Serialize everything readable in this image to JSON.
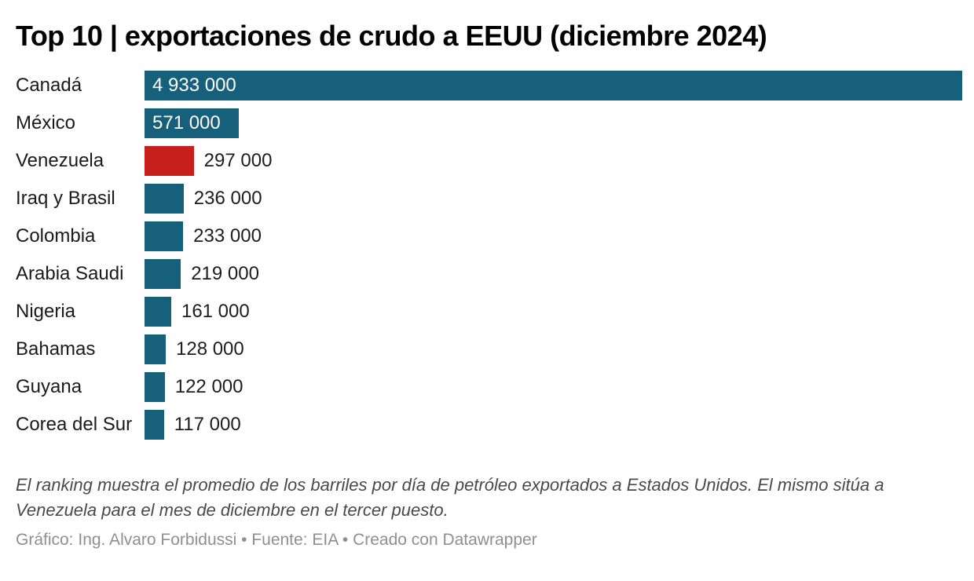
{
  "header": {
    "title": "Top 10 | exportaciones de crudo a EEUU (diciembre 2024)"
  },
  "chart_data": {
    "type": "bar",
    "orientation": "horizontal",
    "title": "Top 10 | exportaciones de crudo a EEUU (diciembre 2024)",
    "categories": [
      "Canadá",
      "México",
      "Venezuela",
      "Iraq y Brasil",
      "Colombia",
      "Arabia Saudi",
      "Nigeria",
      "Bahamas",
      "Guyana",
      "Corea del Sur"
    ],
    "values": [
      4933000,
      571000,
      297000,
      236000,
      233000,
      219000,
      161000,
      128000,
      122000,
      117000
    ],
    "value_labels": [
      "4 933 000",
      "571 000",
      "297 000",
      "236 000",
      "233 000",
      "219 000",
      "161 000",
      "128 000",
      "122 000",
      "117 000"
    ],
    "xlim": [
      0,
      4933000
    ],
    "grid": false,
    "legend": "none",
    "bar_color": "#16607b",
    "highlight_color": "#c7201c",
    "highlight_index": 2,
    "value_label_color_inside": "#ffffff",
    "value_label_color_outside": "#1d1d1d"
  },
  "footer": {
    "notes": "El ranking muestra el promedio de los barriles por día de petróleo exportados a Estados Unidos. El mismo sitúa a Venezuela para el mes de diciembre en el tercer puesto.",
    "attribution": "Gráfico: Ing. Alvaro Forbidussi • Fuente: EIA • Creado con Datawrapper"
  }
}
